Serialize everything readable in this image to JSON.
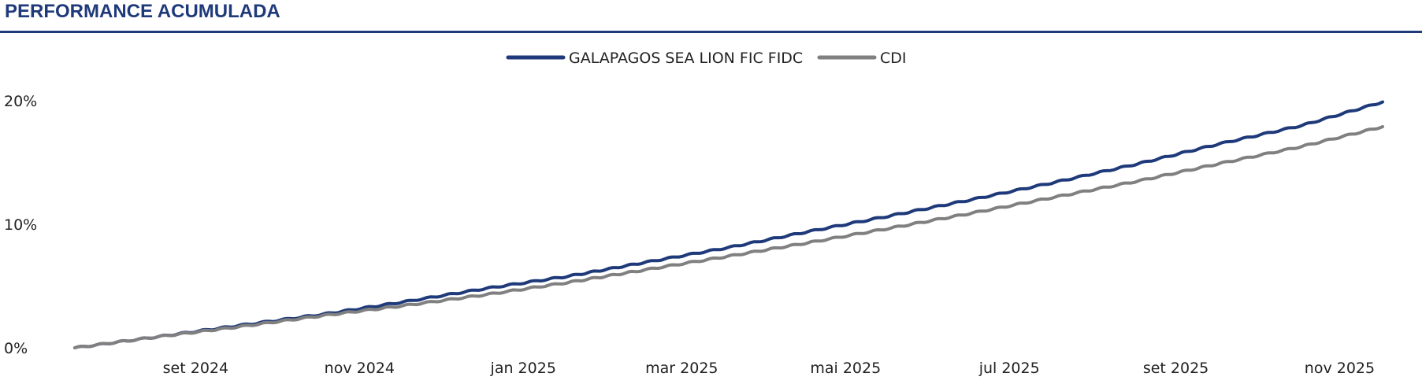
{
  "header": {
    "title": "PERFORMANCE ACUMULADA"
  },
  "chart_data": {
    "type": "line",
    "title": "PERFORMANCE ACUMULADA",
    "xlabel": "",
    "ylabel": "",
    "legend_position": "top-center",
    "x_ticks": [
      "set 2024",
      "nov 2024",
      "jan 2025",
      "mar 2025",
      "mai 2025",
      "jul 2025",
      "set 2025",
      "nov 2025"
    ],
    "y_ticks": [
      "0%",
      "10%",
      "20%"
    ],
    "ylim": [
      0,
      20
    ],
    "grid": false,
    "x": [
      "2024-08-01",
      "2024-09-01",
      "2024-10-01",
      "2024-11-01",
      "2024-12-01",
      "2025-01-01",
      "2025-02-01",
      "2025-03-01",
      "2025-04-01",
      "2025-05-01",
      "2025-06-01",
      "2025-07-01",
      "2025-08-01",
      "2025-09-01",
      "2025-10-01",
      "2025-11-01",
      "2025-12-01"
    ],
    "series": [
      {
        "name": "GALAPAGOS SEA LION FIC FIDC",
        "color": "#1f3a7a",
        "values": [
          0.0,
          0.9,
          1.8,
          2.7,
          3.7,
          4.8,
          5.8,
          6.9,
          8.1,
          9.4,
          10.7,
          12.0,
          13.4,
          14.9,
          16.5,
          18.0,
          19.9
        ]
      },
      {
        "name": "CDI",
        "color": "#808080",
        "values": [
          0.0,
          0.9,
          1.7,
          2.6,
          3.4,
          4.3,
          5.3,
          6.3,
          7.4,
          8.5,
          9.7,
          10.9,
          12.2,
          13.5,
          14.9,
          16.3,
          17.9
        ]
      }
    ]
  }
}
